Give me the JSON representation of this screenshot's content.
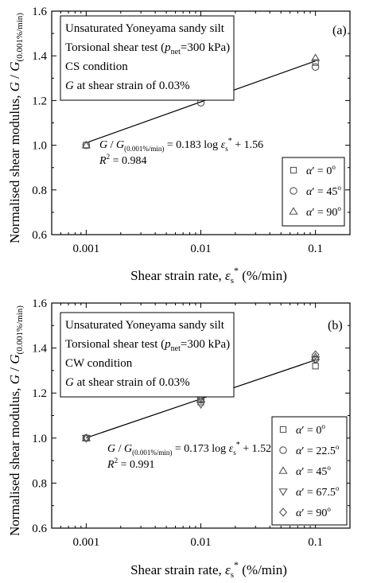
{
  "chart_data": [
    {
      "type": "scatter",
      "panel": "(a)",
      "info_lines": [
        {
          "text": "Unsaturated Yoneyama sandy silt"
        },
        {
          "text": "Torsional shear test (",
          "sub_base": "p",
          "sub": "net",
          "tail": "=300 kPa)"
        },
        {
          "text": "CS condition"
        },
        {
          "italic": "G",
          "tail": " at shear strain of 0.03%"
        }
      ],
      "ylabel": "Normalised shear modulus, G / G(0.001%/min)",
      "xlabel": "Shear strain rate,  εs*  (%/min)",
      "xscale": "log",
      "xlim": [
        0.0005,
        0.2
      ],
      "ylim": [
        0.6,
        1.6
      ],
      "xticks": [
        0.001,
        0.01,
        0.1
      ],
      "xtick_labels": [
        "0.001",
        "0.01",
        "0.1"
      ],
      "yticks": [
        0.6,
        0.8,
        1.0,
        1.2,
        1.4,
        1.6
      ],
      "ytick_labels": [
        "0.6",
        "0.8",
        "1.0",
        "1.2",
        "1.4",
        "1.6"
      ],
      "series": [
        {
          "name": "α′ = 0°",
          "marker": "square",
          "x": [
            0.001,
            0.01,
            0.1
          ],
          "y": [
            1.0,
            1.22,
            1.37
          ]
        },
        {
          "name": "α′ = 45°",
          "marker": "circle",
          "x": [
            0.001,
            0.01,
            0.1
          ],
          "y": [
            1.0,
            1.19,
            1.35
          ]
        },
        {
          "name": "α′ = 90°",
          "marker": "triangle-up",
          "x": [
            0.001,
            0.01,
            0.1
          ],
          "y": [
            1.0,
            1.23,
            1.39
          ]
        }
      ],
      "fit": {
        "slope": 0.183,
        "intercept": 1.56,
        "x_from": 0.001,
        "x_to": 0.1,
        "equation": "G / G(0.001%/min) = 0.183 log εs* + 1.56",
        "r2": "0.984"
      },
      "legend_position": "bottom-right"
    },
    {
      "type": "scatter",
      "panel": "(b)",
      "info_lines": [
        {
          "text": "Unsaturated Yoneyama sandy silt"
        },
        {
          "text": "Torsional shear test (",
          "sub_base": "p",
          "sub": "net",
          "tail": "=300 kPa)"
        },
        {
          "text": "CW condition"
        },
        {
          "italic": "G",
          "tail": " at shear strain of 0.03%"
        }
      ],
      "ylabel": "Normalised shear modulus, G / G(0.001%/min)",
      "xlabel": "Shear strain rate,  εs*  (%/min)",
      "xscale": "log",
      "xlim": [
        0.0005,
        0.2
      ],
      "ylim": [
        0.6,
        1.6
      ],
      "xticks": [
        0.001,
        0.01,
        0.1
      ],
      "xtick_labels": [
        "0.001",
        "0.01",
        "0.1"
      ],
      "yticks": [
        0.6,
        0.8,
        1.0,
        1.2,
        1.4,
        1.6
      ],
      "ytick_labels": [
        "0.6",
        "0.8",
        "1.0",
        "1.2",
        "1.4",
        "1.6"
      ],
      "series": [
        {
          "name": "α′ = 0°",
          "marker": "square",
          "x": [
            0.001,
            0.01,
            0.1
          ],
          "y": [
            1.0,
            1.16,
            1.32
          ]
        },
        {
          "name": "α′ = 22.5°",
          "marker": "circle",
          "x": [
            0.001,
            0.01,
            0.1
          ],
          "y": [
            1.0,
            1.17,
            1.35
          ]
        },
        {
          "name": "α′ = 45°",
          "marker": "triangle-up",
          "x": [
            0.001,
            0.01,
            0.1
          ],
          "y": [
            1.0,
            1.17,
            1.36
          ]
        },
        {
          "name": "α′ = 67.5°",
          "marker": "triangle-down",
          "x": [
            0.001,
            0.01,
            0.1
          ],
          "y": [
            1.0,
            1.15,
            1.35
          ]
        },
        {
          "name": "α′ = 90°",
          "marker": "diamond",
          "x": [
            0.001,
            0.01,
            0.1
          ],
          "y": [
            1.0,
            1.18,
            1.37
          ]
        }
      ],
      "fit": {
        "slope": 0.173,
        "intercept": 1.52,
        "x_from": 0.001,
        "x_to": 0.1,
        "equation": "G / G(0.001%/min) = 0.173 log εs* + 1.52",
        "r2": "0.991"
      },
      "legend_position": "bottom-right"
    }
  ]
}
